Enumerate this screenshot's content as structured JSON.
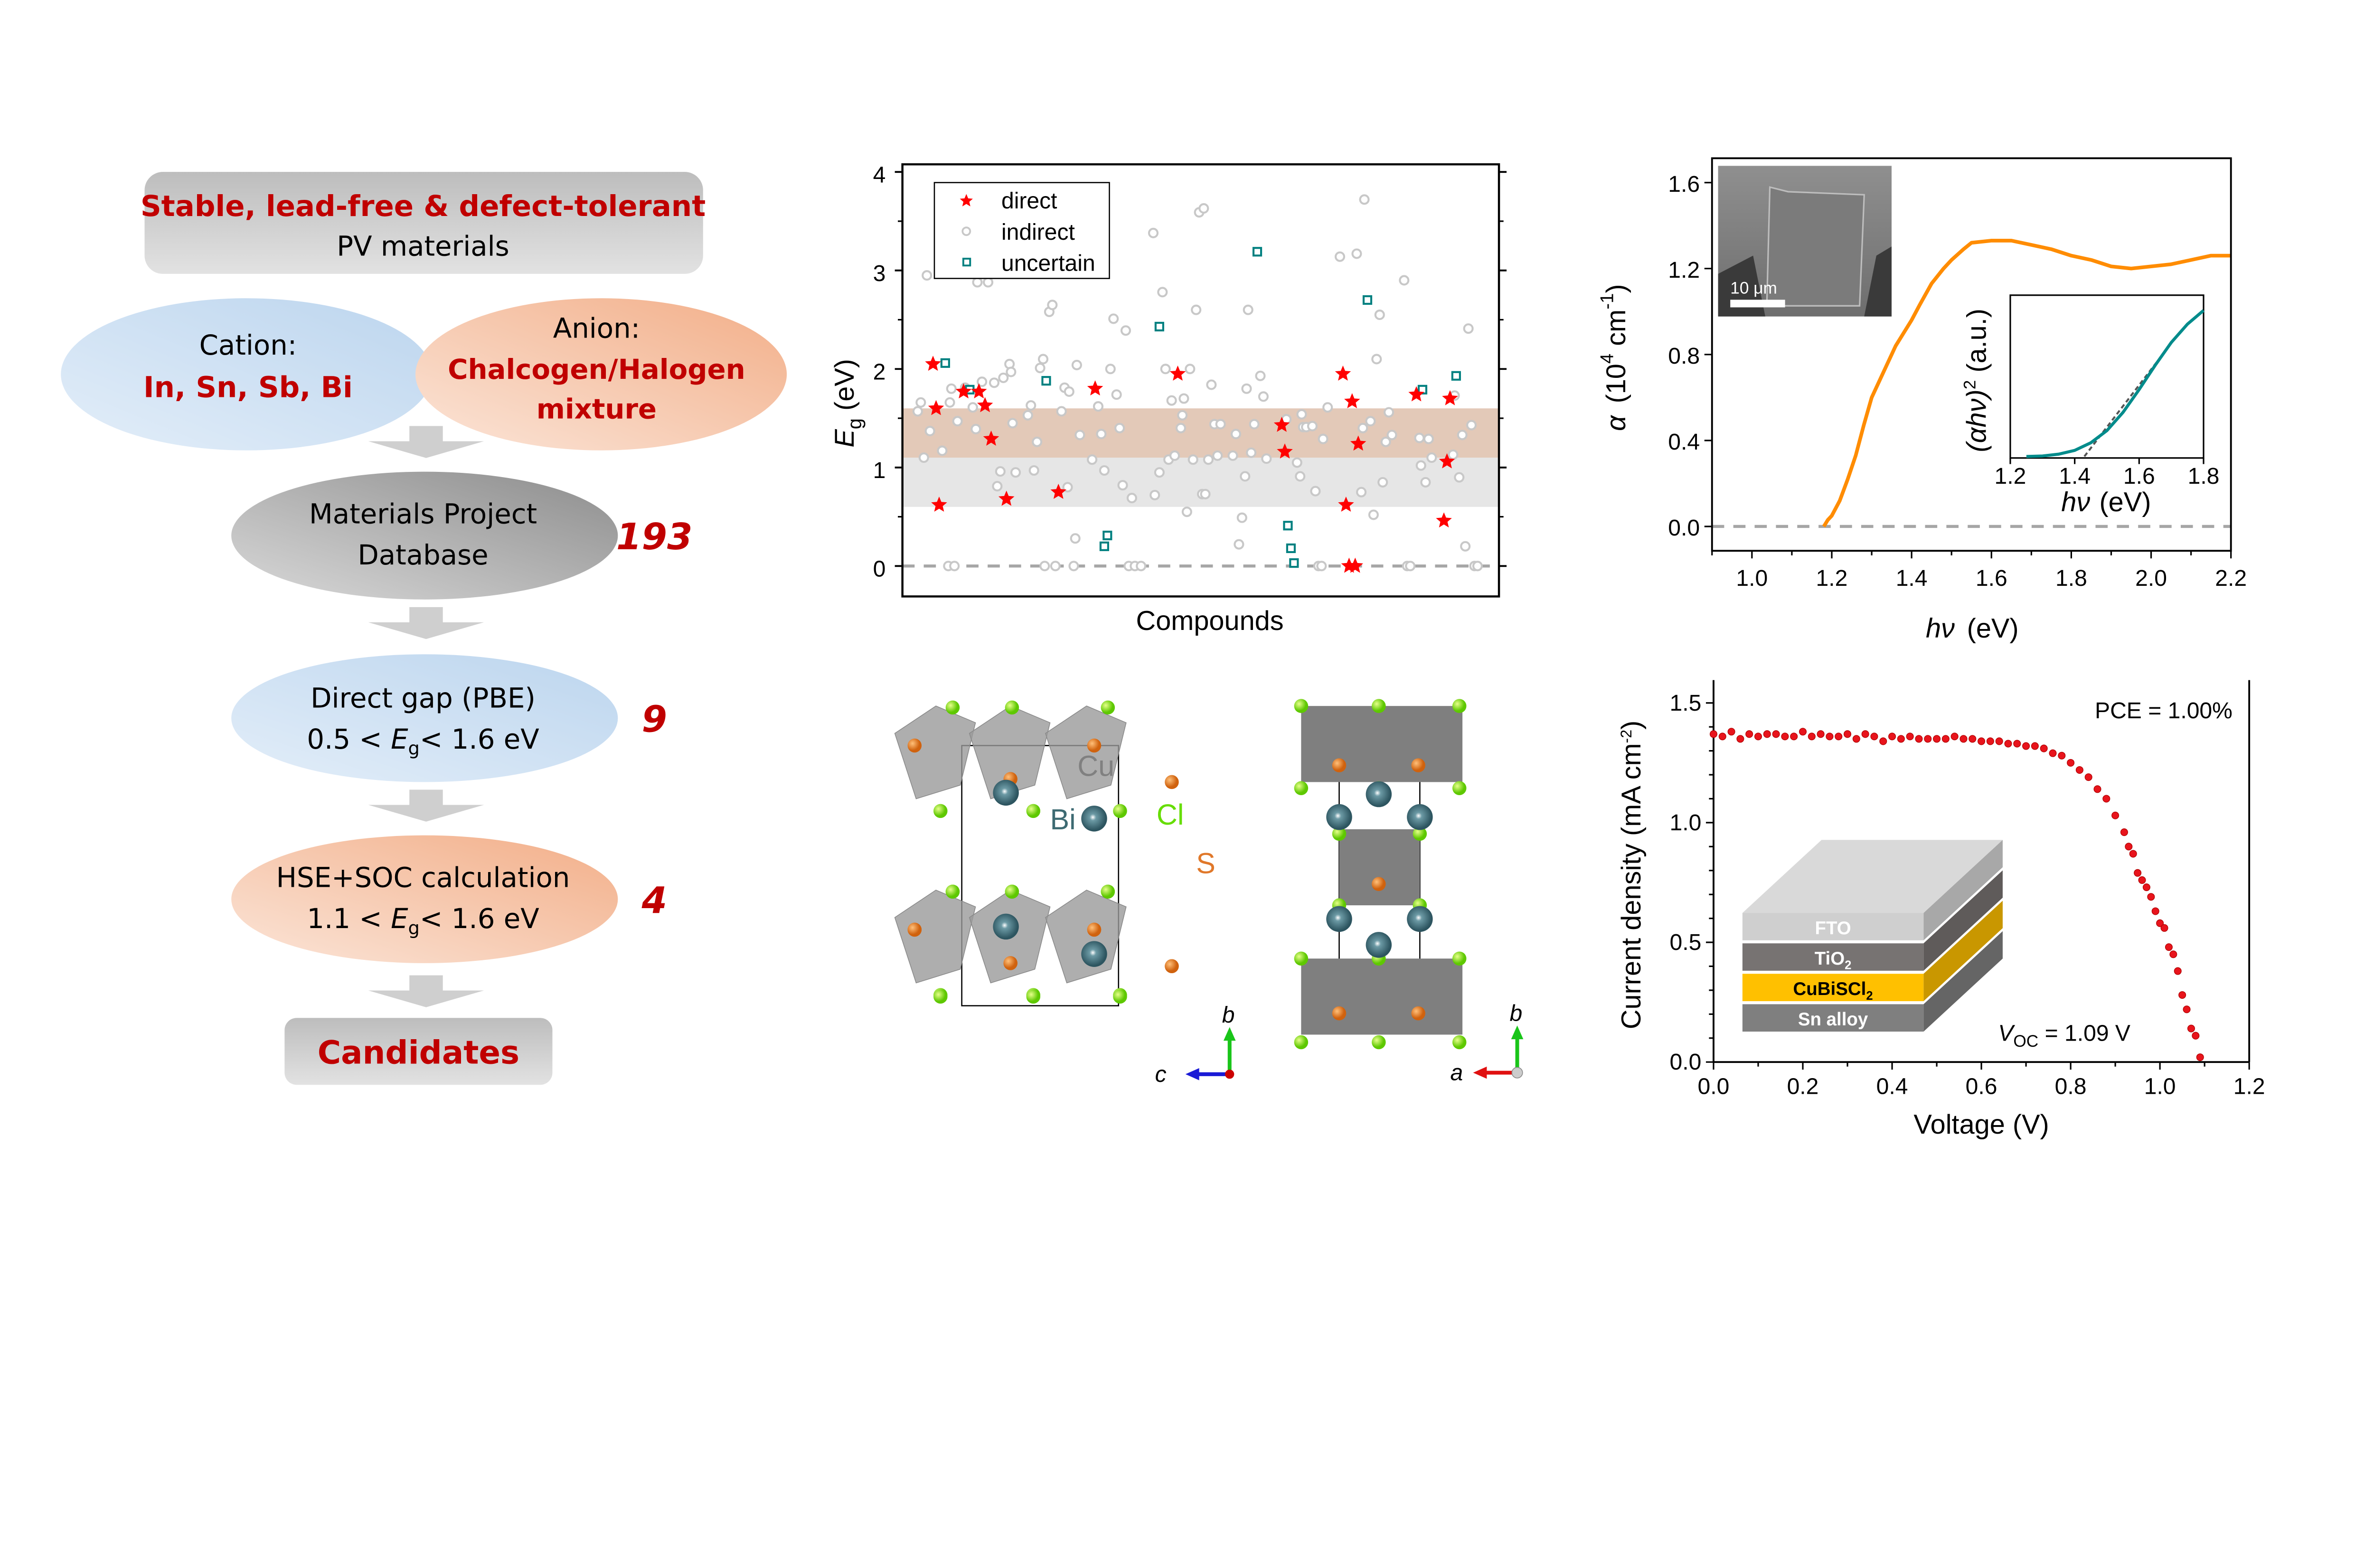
{
  "colors": {
    "accent_red": "#c00000",
    "direct": "#ff0000",
    "indirect": "#cccccc",
    "uncertain": "#008080",
    "absorption": "#ff8c00",
    "tauc": "#008b8b",
    "jv": "#e8141c",
    "band_hse": "#e3c9b8",
    "band_pbe": "#e6e6e6"
  },
  "flowchart": {
    "top_box": {
      "line1": "Stable, lead-free & defect-tolerant",
      "line2": "PV materials"
    },
    "cation": {
      "label": "Cation:",
      "value": "In, Sn, Sb, Bi"
    },
    "anion": {
      "label": "Anion:",
      "value1": "Chalcogen/Halogen",
      "value2": "mixture"
    },
    "database": {
      "line1": "Materials Project",
      "line2": "Database",
      "count": "193"
    },
    "pbe": {
      "line1": "Direct gap (PBE)",
      "line2_pre": "0.5 < ",
      "eg": "E",
      "eg_sub": "g",
      "line2_post": "< 1.6 eV",
      "count": "9"
    },
    "hse": {
      "line1": "HSE+SOC calculation",
      "line2_pre": "1.1 < ",
      "eg": "E",
      "eg_sub": "g",
      "line2_post": "< 1.6 eV",
      "count": "4"
    },
    "result": {
      "label": "Candidates"
    }
  },
  "chart_data": [
    {
      "type": "scatter",
      "xlabel": "Compounds",
      "ylabel": "E",
      "ylabel_sub": "g",
      "ylabel_unit": " (eV)",
      "ylim": [
        -0.2,
        4.2
      ],
      "xlim": [
        0,
        195
      ],
      "yticks": [
        "0",
        "1",
        "2",
        "3",
        "4"
      ],
      "legend_placement": "top-left",
      "bands": [
        {
          "from": 1.1,
          "to": 1.6,
          "color": "#e3c9b8"
        },
        {
          "from": 0.6,
          "to": 1.1,
          "color": "#e6e6e6"
        }
      ],
      "reference_line": 0,
      "series": [
        {
          "name": "direct",
          "marker": "star",
          "points": [
            [
              10,
              2.05
            ],
            [
              11,
              1.6
            ],
            [
              12,
              0.62
            ],
            [
              20,
              1.77
            ],
            [
              25,
              1.77
            ],
            [
              27,
              1.63
            ],
            [
              29,
              1.29
            ],
            [
              34,
              0.68
            ],
            [
              51,
              0.75
            ],
            [
              63,
              1.8
            ],
            [
              90,
              1.95
            ],
            [
              124,
              1.43
            ],
            [
              125,
              1.16
            ],
            [
              144,
              1.95
            ],
            [
              145,
              0.62
            ],
            [
              146,
              0
            ],
            [
              148,
              0
            ],
            [
              147,
              1.67
            ],
            [
              149,
              1.24
            ],
            [
              168,
              1.74
            ],
            [
              177,
              0.46
            ],
            [
              178,
              1.06
            ],
            [
              179,
              1.7
            ]
          ]
        },
        {
          "name": "indirect",
          "marker": "circle",
          "points": [
            [
              5,
              1.57
            ],
            [
              6,
              1.66
            ],
            [
              7,
              1.1
            ],
            [
              8,
              2.95
            ],
            [
              9,
              1.37
            ],
            [
              13,
              1.17
            ],
            [
              15,
              0
            ],
            [
              15.5,
              1.66
            ],
            [
              16,
              1.8
            ],
            [
              17,
              0
            ],
            [
              18,
              1.47
            ],
            [
              20.5,
              1.81
            ],
            [
              23,
              1.61
            ],
            [
              24,
              1.39
            ],
            [
              24.5,
              2.88
            ],
            [
              26,
              1.87
            ],
            [
              28,
              2.88
            ],
            [
              30,
              1.86
            ],
            [
              31,
              0.81
            ],
            [
              32,
              0.96
            ],
            [
              33,
              1.91
            ],
            [
              35,
              2.05
            ],
            [
              35.5,
              1.97
            ],
            [
              36,
              1.45
            ],
            [
              37,
              0.95
            ],
            [
              41,
              1.53
            ],
            [
              42,
              1.63
            ],
            [
              43,
              0.97
            ],
            [
              44,
              1.26
            ],
            [
              45,
              2.01
            ],
            [
              46,
              2.1
            ],
            [
              46.5,
              0
            ],
            [
              48,
              2.58
            ],
            [
              49,
              2.65
            ],
            [
              50,
              0
            ],
            [
              52,
              1.57
            ],
            [
              53,
              1.81
            ],
            [
              54,
              0.8
            ],
            [
              54.5,
              1.77
            ],
            [
              56,
              0
            ],
            [
              56.5,
              0.28
            ],
            [
              57,
              2.04
            ],
            [
              58,
              1.33
            ],
            [
              62,
              1.08
            ],
            [
              64,
              1.62
            ],
            [
              65,
              1.34
            ],
            [
              66,
              0.97
            ],
            [
              68,
              2.0
            ],
            [
              69,
              2.51
            ],
            [
              70,
              1.74
            ],
            [
              71,
              1.4
            ],
            [
              72,
              0.82
            ],
            [
              73,
              2.39
            ],
            [
              74,
              0
            ],
            [
              75,
              0.69
            ],
            [
              76,
              0
            ],
            [
              78,
              0
            ],
            [
              82,
              3.38
            ],
            [
              82.5,
              0.72
            ],
            [
              84,
              0.95
            ],
            [
              85,
              2.78
            ],
            [
              86,
              2.0
            ],
            [
              87,
              1.08
            ],
            [
              88,
              1.68
            ],
            [
              89,
              1.12
            ],
            [
              91,
              1.4
            ],
            [
              91.5,
              1.53
            ],
            [
              92,
              1.7
            ],
            [
              93,
              0.55
            ],
            [
              94,
              2.0
            ],
            [
              95,
              1.08
            ],
            [
              96,
              2.6
            ],
            [
              97,
              3.59
            ],
            [
              98,
              0.73
            ],
            [
              98.5,
              3.63
            ],
            [
              99,
              0.73
            ],
            [
              100,
              1.08
            ],
            [
              101,
              1.84
            ],
            [
              102,
              1.44
            ],
            [
              103,
              1.12
            ],
            [
              104,
              1.44
            ],
            [
              108,
              1.12
            ],
            [
              109,
              1.34
            ],
            [
              110,
              0.22
            ],
            [
              111,
              0.49
            ],
            [
              112,
              0.91
            ],
            [
              112.5,
              1.8
            ],
            [
              113,
              2.6
            ],
            [
              114,
              1.15
            ],
            [
              115,
              1.44
            ],
            [
              117,
              1.93
            ],
            [
              118,
              1.72
            ],
            [
              119,
              1.09
            ],
            [
              125.5,
              1.49
            ],
            [
              129,
              1.05
            ],
            [
              130,
              0.91
            ],
            [
              130.5,
              1.54
            ],
            [
              131,
              1.41
            ],
            [
              132,
              1.41
            ],
            [
              134,
              1.42
            ],
            [
              135,
              0.76
            ],
            [
              136,
              0
            ],
            [
              137,
              0
            ],
            [
              137.5,
              1.29
            ],
            [
              139,
              1.61
            ],
            [
              143,
              3.14
            ],
            [
              148.5,
              3.17
            ],
            [
              150,
              0.75
            ],
            [
              150.5,
              1.4
            ],
            [
              151,
              3.72
            ],
            [
              153,
              1.47
            ],
            [
              154,
              0.52
            ],
            [
              155,
              2.1
            ],
            [
              156,
              2.55
            ],
            [
              157,
              0.85
            ],
            [
              158,
              1.26
            ],
            [
              159,
              1.56
            ],
            [
              160,
              1.33
            ],
            [
              164,
              2.9
            ],
            [
              165,
              0
            ],
            [
              166,
              0
            ],
            [
              169,
              1.3
            ],
            [
              169.5,
              1.02
            ],
            [
              171,
              0.85
            ],
            [
              172,
              1.29
            ],
            [
              173,
              1.1
            ],
            [
              180,
              1.13
            ],
            [
              180.5,
              1.73
            ],
            [
              182,
              0.9
            ],
            [
              183,
              1.33
            ],
            [
              184,
              0.2
            ],
            [
              185,
              2.41
            ],
            [
              186,
              1.43
            ],
            [
              187,
              0
            ],
            [
              188,
              0
            ]
          ]
        },
        {
          "name": "uncertain",
          "marker": "square",
          "points": [
            [
              14,
              2.06
            ],
            [
              22,
              1.79
            ],
            [
              47,
              1.88
            ],
            [
              66,
              0.2
            ],
            [
              67,
              0.31
            ],
            [
              84,
              2.43
            ],
            [
              116,
              3.19
            ],
            [
              126,
              0.41
            ],
            [
              127,
              0.18
            ],
            [
              128,
              0.03
            ],
            [
              152,
              2.7
            ],
            [
              170,
              1.79
            ],
            [
              181,
              1.93
            ]
          ]
        }
      ]
    },
    {
      "type": "line",
      "xlabel": "hν",
      "xlabel_unit": "(eV)",
      "ylabel": "α",
      "ylabel_unit": "(10",
      "ylabel_exp": "4",
      "ylabel_unit2": " cm",
      "ylabel_exp2": "-1",
      "ylabel_close": ")",
      "xlim": [
        0.9,
        2.2
      ],
      "ylim": [
        -0.11,
        1.71
      ],
      "xticks": [
        "1.0",
        "1.2",
        "1.4",
        "1.6",
        "1.8",
        "2.0",
        "2.2"
      ],
      "yticks": [
        "0.0",
        "0.4",
        "0.8",
        "1.2",
        "1.6"
      ],
      "reference_line": 0,
      "series": [
        {
          "x": [
            1.18,
            1.19,
            1.2,
            1.22,
            1.24,
            1.26,
            1.28,
            1.3,
            1.32,
            1.34,
            1.36,
            1.38,
            1.4,
            1.42,
            1.45,
            1.48,
            1.5,
            1.53,
            1.55,
            1.6,
            1.65,
            1.7,
            1.75,
            1.8,
            1.85,
            1.9,
            1.95,
            2.0,
            2.05,
            2.1,
            2.15,
            2.2
          ],
          "y": [
            0,
            0.03,
            0.05,
            0.12,
            0.22,
            0.33,
            0.47,
            0.6,
            0.68,
            0.76,
            0.84,
            0.9,
            0.96,
            1.03,
            1.13,
            1.2,
            1.24,
            1.29,
            1.32,
            1.33,
            1.33,
            1.31,
            1.29,
            1.26,
            1.24,
            1.21,
            1.2,
            1.21,
            1.22,
            1.24,
            1.26,
            1.26
          ]
        }
      ],
      "sem_inset": {
        "scale_bar": "10 μm"
      },
      "inset": {
        "type": "line",
        "xlabel": "hν",
        "xlabel_unit": "(eV)",
        "ylabel": "(αhν)",
        "ylabel_exp": "2",
        "ylabel_unit": " (a.u.)",
        "xlim": [
          1.2,
          1.8
        ],
        "xticks": [
          "1.2",
          "1.4",
          "1.6",
          "1.8"
        ],
        "series": [
          {
            "x": [
              1.25,
              1.3,
              1.35,
              1.4,
              1.45,
              1.5,
              1.55,
              1.6,
              1.65,
              1.7,
              1.75,
              1.8
            ],
            "y": [
              0,
              0.003,
              0.015,
              0.04,
              0.09,
              0.17,
              0.29,
              0.44,
              0.6,
              0.75,
              0.87,
              0.96
            ]
          }
        ],
        "linear_fit": {
          "x": [
            1.43,
            1.68
          ],
          "y": [
            0,
            0.69
          ]
        }
      }
    },
    {
      "type": "scatter",
      "xlabel": "Voltage (V)",
      "ylabel": "Current density (mA cm",
      "ylabel_exp": "-2",
      "ylabel_close": ")",
      "xlim": [
        0,
        1.2
      ],
      "ylim": [
        0,
        1.6
      ],
      "xticks": [
        "0.0",
        "0.2",
        "0.4",
        "0.6",
        "0.8",
        "1.0",
        "1.2"
      ],
      "yticks": [
        "0.0",
        "0.5",
        "1.0",
        "1.5"
      ],
      "annotations": {
        "pce": "PCE = 1.00%",
        "voc_v": "V",
        "voc_sub": "OC",
        "voc_value": " = 1.09 V"
      },
      "series": [
        {
          "x": [
            0,
            0.02,
            0.04,
            0.06,
            0.08,
            0.1,
            0.12,
            0.14,
            0.16,
            0.18,
            0.2,
            0.22,
            0.24,
            0.26,
            0.28,
            0.3,
            0.32,
            0.34,
            0.36,
            0.38,
            0.4,
            0.42,
            0.44,
            0.46,
            0.48,
            0.5,
            0.52,
            0.54,
            0.56,
            0.58,
            0.6,
            0.62,
            0.64,
            0.66,
            0.68,
            0.7,
            0.72,
            0.74,
            0.76,
            0.78,
            0.8,
            0.82,
            0.84,
            0.86,
            0.88,
            0.9,
            0.92,
            0.93,
            0.94,
            0.95,
            0.96,
            0.97,
            0.98,
            0.99,
            1.0,
            1.01,
            1.02,
            1.03,
            1.04,
            1.05,
            1.06,
            1.07,
            1.08,
            1.09
          ],
          "y": [
            1.37,
            1.36,
            1.38,
            1.35,
            1.37,
            1.36,
            1.37,
            1.37,
            1.36,
            1.36,
            1.38,
            1.36,
            1.37,
            1.36,
            1.36,
            1.37,
            1.35,
            1.37,
            1.36,
            1.34,
            1.36,
            1.35,
            1.36,
            1.35,
            1.35,
            1.35,
            1.35,
            1.36,
            1.35,
            1.35,
            1.34,
            1.34,
            1.34,
            1.33,
            1.33,
            1.32,
            1.32,
            1.31,
            1.29,
            1.28,
            1.25,
            1.22,
            1.19,
            1.14,
            1.1,
            1.03,
            0.96,
            0.9,
            0.87,
            0.79,
            0.76,
            0.73,
            0.69,
            0.63,
            0.58,
            0.56,
            0.48,
            0.45,
            0.38,
            0.28,
            0.22,
            0.14,
            0.11,
            0.02
          ]
        }
      ],
      "device_inset": {
        "layers": [
          "FTO",
          "TiO",
          "CuBiSCl",
          "Sn alloy"
        ],
        "layer_subs": [
          "",
          "2",
          "2",
          ""
        ]
      }
    }
  ],
  "structure": {
    "labels": {
      "cu": "Cu",
      "bi": "Bi",
      "cl": "Cl",
      "s": "S"
    },
    "axes_left": {
      "vertical": "b",
      "horizontal": "c",
      "out": "a"
    },
    "axes_right": {
      "vertical": "b",
      "horizontal": "a"
    }
  }
}
